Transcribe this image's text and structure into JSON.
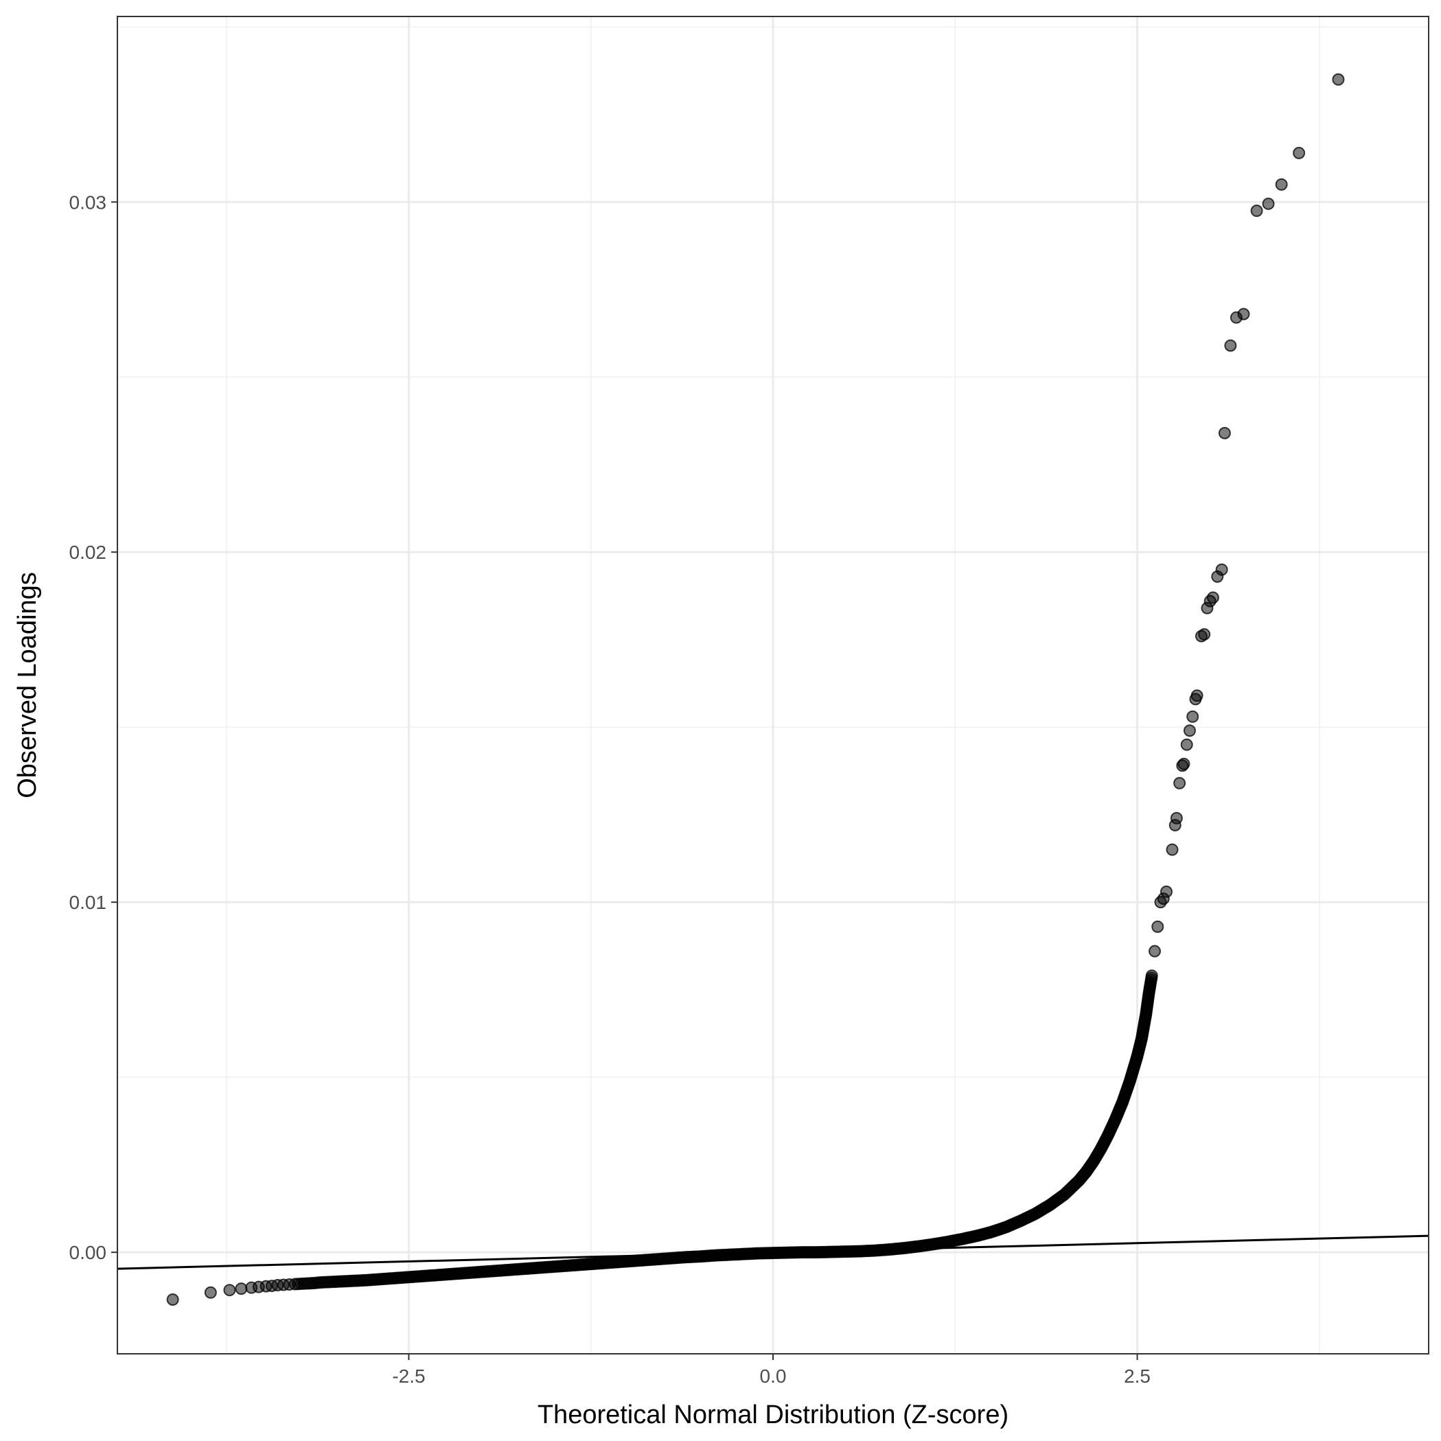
{
  "chart_data": {
    "type": "scatter",
    "title": "",
    "xlabel": "Theoretical Normal Distribution (Z-score)",
    "ylabel": "Observed Loadings",
    "xlim": [
      -4.5,
      4.5
    ],
    "ylim": [
      -0.0029,
      0.0353
    ],
    "x_ticks": [
      -2.5,
      0.0,
      2.5
    ],
    "x_tick_labels": [
      "-2.5",
      "0.0",
      "2.5"
    ],
    "y_ticks": [
      0.0,
      0.01,
      0.02,
      0.03
    ],
    "y_tick_labels": [
      "0.00",
      "0.01",
      "0.02",
      "0.03"
    ],
    "grid": true,
    "legend": "none",
    "point_color": "#000000",
    "reference_line": {
      "intercept": 0.0,
      "slope": 0.0001045,
      "x_range": [
        -4.5,
        4.5
      ]
    },
    "points": [
      [
        -4.12,
        -0.00135
      ],
      [
        -3.86,
        -0.00115
      ],
      [
        -3.73,
        -0.00108
      ],
      [
        -3.65,
        -0.00104
      ],
      [
        -3.58,
        -0.00101
      ],
      [
        -3.53,
        -0.00099
      ],
      [
        -3.48,
        -0.00097
      ],
      [
        -3.44,
        -0.00096
      ],
      [
        -3.4,
        -0.00094
      ],
      [
        -3.36,
        -0.00093
      ],
      [
        -3.32,
        -0.00092
      ],
      [
        -3.28,
        -0.00091
      ],
      [
        -3.24,
        -0.0009
      ],
      [
        -3.2,
        -0.00089
      ],
      [
        -3.15,
        -0.00088
      ],
      [
        -3.1,
        -0.00086
      ],
      [
        -3.05,
        -0.00085
      ],
      [
        -3.0,
        -0.00084
      ],
      [
        -2.9,
        -0.00082
      ],
      [
        -2.8,
        -0.0008
      ],
      [
        -2.7,
        -0.00077
      ],
      [
        -2.6,
        -0.00074
      ],
      [
        -2.5,
        -0.00071
      ],
      [
        -2.4,
        -0.00068
      ],
      [
        -2.3,
        -0.00065
      ],
      [
        -2.2,
        -0.00062
      ],
      [
        -2.1,
        -0.00059
      ],
      [
        -2.0,
        -0.00056
      ],
      [
        -1.9,
        -0.00053
      ],
      [
        -1.8,
        -0.0005
      ],
      [
        -1.7,
        -0.00047
      ],
      [
        -1.6,
        -0.00044
      ],
      [
        -1.5,
        -0.00041
      ],
      [
        -1.4,
        -0.00038
      ],
      [
        -1.3,
        -0.00035
      ],
      [
        -1.2,
        -0.00032
      ],
      [
        -1.1,
        -0.00029
      ],
      [
        -1.0,
        -0.00026
      ],
      [
        -0.9,
        -0.00023
      ],
      [
        -0.8,
        -0.0002
      ],
      [
        -0.7,
        -0.00017
      ],
      [
        -0.6,
        -0.00014
      ],
      [
        -0.5,
        -0.00012
      ],
      [
        -0.4,
        -9e-05
      ],
      [
        -0.3,
        -7e-05
      ],
      [
        -0.2,
        -5e-05
      ],
      [
        -0.1,
        -3e-05
      ],
      [
        0.0,
        -2e-05
      ],
      [
        0.1,
        -1e-05
      ],
      [
        0.2,
        0.0
      ],
      [
        0.3,
        0.0
      ],
      [
        0.4,
        1e-05
      ],
      [
        0.5,
        2e-05
      ],
      [
        0.6,
        3e-05
      ],
      [
        0.7,
        5e-05
      ],
      [
        0.8,
        8e-05
      ],
      [
        0.9,
        0.00012
      ],
      [
        1.0,
        0.00017
      ],
      [
        1.1,
        0.00023
      ],
      [
        1.2,
        0.0003
      ],
      [
        1.3,
        0.00038
      ],
      [
        1.4,
        0.00047
      ],
      [
        1.5,
        0.00058
      ],
      [
        1.6,
        0.00072
      ],
      [
        1.7,
        0.0009
      ],
      [
        1.8,
        0.0011
      ],
      [
        1.9,
        0.00135
      ],
      [
        2.0,
        0.00165
      ],
      [
        2.05,
        0.00185
      ],
      [
        2.1,
        0.00205
      ],
      [
        2.15,
        0.0023
      ],
      [
        2.2,
        0.0026
      ],
      [
        2.25,
        0.00295
      ],
      [
        2.3,
        0.00335
      ],
      [
        2.35,
        0.0038
      ],
      [
        2.4,
        0.0043
      ],
      [
        2.45,
        0.0049
      ],
      [
        2.5,
        0.0056
      ],
      [
        2.53,
        0.0061
      ],
      [
        2.56,
        0.0068
      ],
      [
        2.58,
        0.0074
      ],
      [
        2.6,
        0.0079
      ],
      [
        2.62,
        0.0086
      ],
      [
        2.64,
        0.0093
      ],
      [
        2.66,
        0.01
      ],
      [
        2.68,
        0.0101
      ],
      [
        2.7,
        0.0103
      ],
      [
        2.74,
        0.0115
      ],
      [
        2.76,
        0.0122
      ],
      [
        2.77,
        0.0124
      ],
      [
        2.79,
        0.0134
      ],
      [
        2.81,
        0.0139
      ],
      [
        2.82,
        0.01395
      ],
      [
        2.84,
        0.0145
      ],
      [
        2.86,
        0.0149
      ],
      [
        2.88,
        0.0153
      ],
      [
        2.9,
        0.0158
      ],
      [
        2.91,
        0.0159
      ],
      [
        2.94,
        0.0176
      ],
      [
        2.96,
        0.01765
      ],
      [
        2.98,
        0.0184
      ],
      [
        3.0,
        0.0186
      ],
      [
        3.02,
        0.0187
      ],
      [
        3.05,
        0.0193
      ],
      [
        3.08,
        0.0195
      ],
      [
        3.1,
        0.0234
      ],
      [
        3.14,
        0.0259
      ],
      [
        3.18,
        0.0267
      ],
      [
        3.23,
        0.0268
      ],
      [
        3.32,
        0.02975
      ],
      [
        3.4,
        0.02995
      ],
      [
        3.49,
        0.0305
      ],
      [
        3.61,
        0.0314
      ],
      [
        3.88,
        0.0335
      ]
    ]
  }
}
